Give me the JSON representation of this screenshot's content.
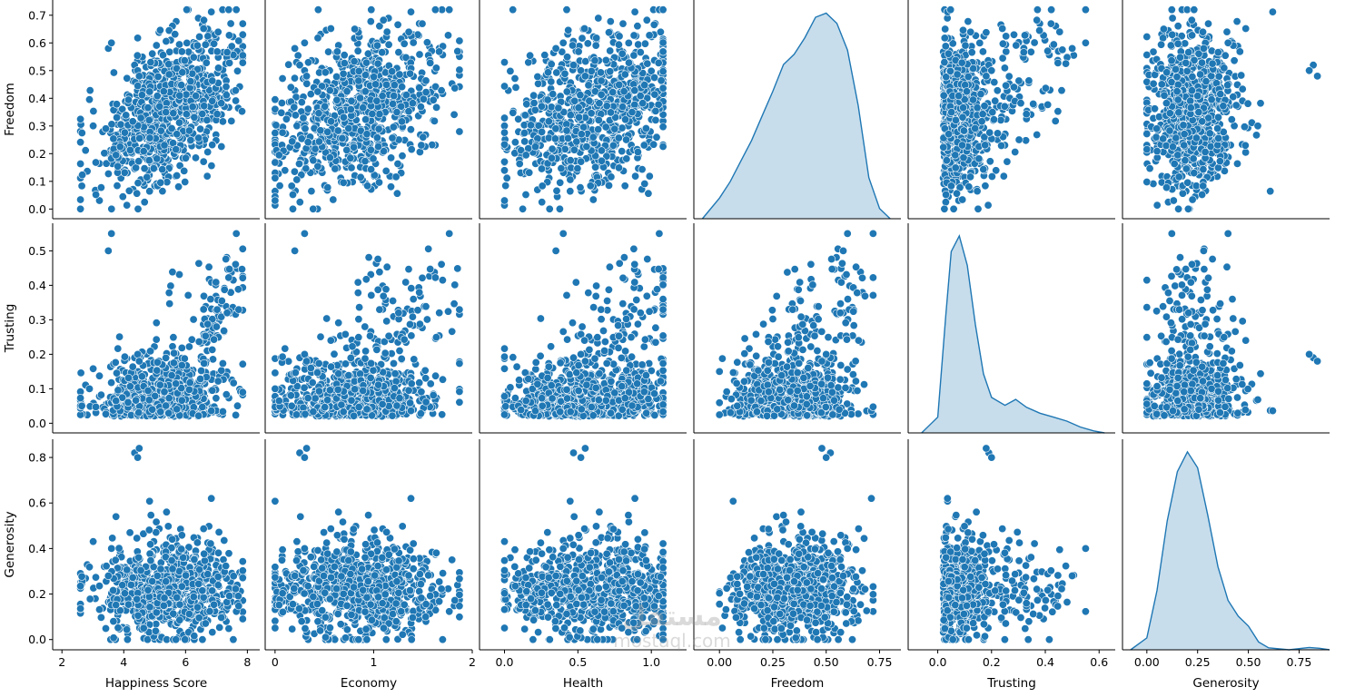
{
  "watermark": {
    "logo_text": "مستقل",
    "url_text": "mostaql.com"
  },
  "colors": {
    "point": "#1f77b4",
    "point_edge": "#ffffff",
    "kde_fill": "#1f77b4",
    "axis": "#000000"
  },
  "chart_data": {
    "type": "pairplot",
    "row_variables": [
      "Freedom",
      "Trusting",
      "Generosity"
    ],
    "col_variables": [
      "Happiness Score",
      "Economy",
      "Health",
      "Freedom",
      "Trusting",
      "Generosity"
    ],
    "diagonal_type": "kde",
    "offdiagonal_type": "scatter",
    "grid": false,
    "axes": {
      "Happiness Score": {
        "lim": [
          1.7,
          8.4
        ],
        "ticks": [
          2,
          4,
          6,
          8
        ],
        "tick_labels": [
          "2",
          "4",
          "6",
          "8"
        ]
      },
      "Economy": {
        "lim": [
          -0.1,
          2.0
        ],
        "ticks": [
          0,
          1,
          2
        ],
        "tick_labels": [
          "0",
          "1",
          "2"
        ]
      },
      "Health": {
        "lim": [
          -0.17,
          1.24
        ],
        "ticks": [
          0.0,
          0.5,
          1.0
        ],
        "tick_labels": [
          "0.0",
          "0.5",
          "1.0"
        ]
      },
      "Freedom": {
        "lim": [
          -0.035,
          0.755
        ],
        "ticks": [
          0.0,
          0.1,
          0.2,
          0.3,
          0.4,
          0.5,
          0.6,
          0.7
        ],
        "tick_labels": [
          "0.0",
          "0.1",
          "0.2",
          "0.3",
          "0.4",
          "0.5",
          "0.6",
          "0.7"
        ],
        "col_ticks": [
          0.0,
          0.25,
          0.5,
          0.75
        ],
        "col_tick_labels": [
          "0.00",
          "0.25",
          "0.50",
          "0.75"
        ],
        "col_lim": [
          -0.12,
          0.85
        ]
      },
      "Trusting": {
        "lim": [
          -0.028,
          0.58
        ],
        "ticks": [
          0.0,
          0.1,
          0.2,
          0.3,
          0.4,
          0.5
        ],
        "tick_labels": [
          "0.0",
          "0.1",
          "0.2",
          "0.3",
          "0.4",
          "0.5"
        ],
        "col_ticks": [
          0.0,
          0.2,
          0.4,
          0.6
        ],
        "col_tick_labels": [
          "0.0",
          "0.2",
          "0.4",
          "0.6"
        ],
        "col_lim": [
          -0.11,
          0.66
        ]
      },
      "Generosity": {
        "lim": [
          -0.045,
          0.88
        ],
        "ticks": [
          0.0,
          0.2,
          0.4,
          0.6,
          0.8
        ],
        "tick_labels": [
          "0.0",
          "0.2",
          "0.4",
          "0.6",
          "0.8"
        ],
        "col_ticks": [
          0.0,
          0.25,
          0.5,
          0.75
        ],
        "col_tick_labels": [
          "0.00",
          "0.25",
          "0.50",
          "0.75"
        ],
        "col_lim": [
          -0.12,
          0.9
        ]
      }
    },
    "kde": {
      "Freedom": {
        "x": [
          -0.08,
          0.0,
          0.05,
          0.1,
          0.15,
          0.2,
          0.25,
          0.3,
          0.35,
          0.4,
          0.45,
          0.5,
          0.55,
          0.6,
          0.65,
          0.7,
          0.75,
          0.8
        ],
        "density": [
          0.0,
          0.1,
          0.18,
          0.28,
          0.38,
          0.5,
          0.62,
          0.75,
          0.8,
          0.88,
          0.98,
          1.0,
          0.95,
          0.82,
          0.55,
          0.2,
          0.05,
          0.0
        ]
      },
      "Trusting": {
        "x": [
          -0.06,
          0.0,
          0.03,
          0.05,
          0.08,
          0.11,
          0.14,
          0.17,
          0.2,
          0.25,
          0.29,
          0.33,
          0.38,
          0.43,
          0.48,
          0.53,
          0.58,
          0.62
        ],
        "density": [
          0.0,
          0.08,
          0.6,
          0.92,
          1.0,
          0.85,
          0.55,
          0.3,
          0.18,
          0.14,
          0.17,
          0.13,
          0.1,
          0.08,
          0.06,
          0.03,
          0.01,
          0.0
        ]
      },
      "Generosity": {
        "x": [
          -0.08,
          0.0,
          0.05,
          0.1,
          0.15,
          0.2,
          0.25,
          0.3,
          0.35,
          0.4,
          0.45,
          0.5,
          0.55,
          0.6,
          0.7,
          0.8,
          0.85,
          0.9
        ],
        "density": [
          0.0,
          0.06,
          0.3,
          0.65,
          0.9,
          1.0,
          0.92,
          0.68,
          0.42,
          0.25,
          0.17,
          0.12,
          0.04,
          0.01,
          0.0,
          0.012,
          0.008,
          0.0
        ]
      }
    },
    "scatter_sample": {
      "Freedom_vs_Happiness Score": [
        [
          2.6,
          0.0
        ],
        [
          2.9,
          0.27
        ],
        [
          3.2,
          0.08
        ],
        [
          3.4,
          0.5
        ],
        [
          3.6,
          0.18
        ],
        [
          3.8,
          0.33
        ],
        [
          4.0,
          0.4
        ],
        [
          4.2,
          0.6
        ],
        [
          4.4,
          0.22
        ],
        [
          4.6,
          0.47
        ],
        [
          4.8,
          0.09
        ],
        [
          5.0,
          0.55
        ],
        [
          5.2,
          0.3
        ],
        [
          5.4,
          0.62
        ],
        [
          5.6,
          0.44
        ],
        [
          5.8,
          0.2
        ],
        [
          6.0,
          0.58
        ],
        [
          6.2,
          0.65
        ],
        [
          6.4,
          0.5
        ],
        [
          6.6,
          0.41
        ],
        [
          6.8,
          0.6
        ],
        [
          7.0,
          0.67
        ],
        [
          7.2,
          0.56
        ],
        [
          7.4,
          0.63
        ],
        [
          7.6,
          0.66
        ],
        [
          7.8,
          0.68
        ]
      ],
      "Trusting_vs_Happiness Score": [
        [
          2.6,
          0.0
        ],
        [
          3.0,
          0.09
        ],
        [
          3.5,
          0.5
        ],
        [
          3.6,
          0.54
        ],
        [
          3.8,
          0.12
        ],
        [
          4.1,
          0.08
        ],
        [
          4.4,
          0.2
        ],
        [
          4.7,
          0.05
        ],
        [
          5.0,
          0.1
        ],
        [
          5.2,
          0.22
        ],
        [
          5.5,
          0.04
        ],
        [
          5.8,
          0.15
        ],
        [
          6.1,
          0.28
        ],
        [
          6.3,
          0.12
        ],
        [
          6.5,
          0.46
        ],
        [
          6.7,
          0.07
        ],
        [
          6.9,
          0.3
        ],
        [
          7.1,
          0.25
        ],
        [
          7.3,
          0.38
        ],
        [
          7.5,
          0.43
        ],
        [
          7.7,
          0.48
        ]
      ],
      "Generosity_vs_Happiness Score": [
        [
          2.6,
          0.13
        ],
        [
          3.0,
          0.25
        ],
        [
          3.4,
          0.48
        ],
        [
          3.8,
          0.18
        ],
        [
          4.2,
          0.3
        ],
        [
          4.4,
          0.82
        ],
        [
          4.6,
          0.1
        ],
        [
          4.8,
          0.36
        ],
        [
          5.0,
          0.22
        ],
        [
          5.2,
          0.6
        ],
        [
          5.5,
          0.15
        ],
        [
          5.8,
          0.27
        ],
        [
          6.0,
          0.4
        ],
        [
          6.3,
          0.05
        ],
        [
          6.6,
          0.55
        ],
        [
          7.0,
          0.2
        ],
        [
          7.3,
          0.33
        ],
        [
          7.6,
          0.28
        ],
        [
          7.8,
          0.14
        ]
      ]
    }
  }
}
